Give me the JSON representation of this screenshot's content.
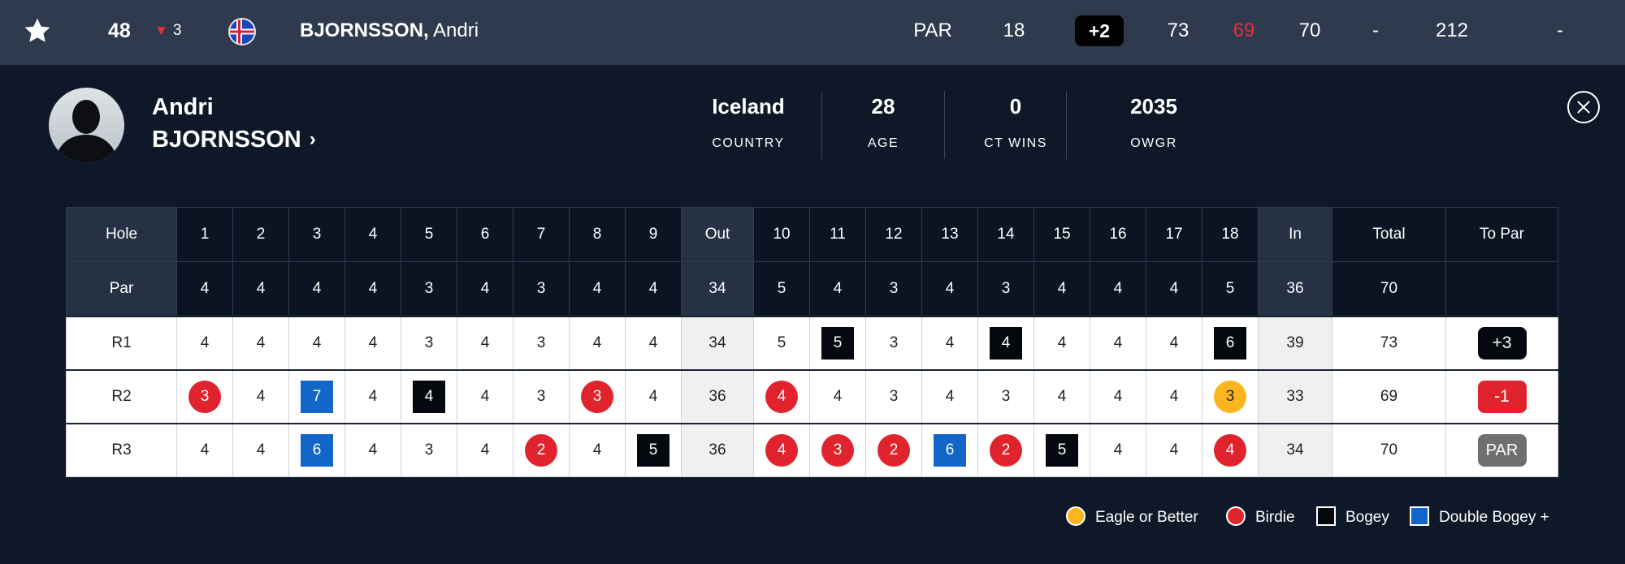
{
  "topbar": {
    "position": "48",
    "movement": "3",
    "player_last": "BJORNSSON,",
    "player_first": "Andri",
    "par_label": "PAR",
    "thru": "18",
    "to_par": "+2",
    "rounds": [
      "73",
      "69",
      "70",
      "-"
    ],
    "total": "212",
    "extra": "-"
  },
  "player": {
    "first_name": "Andri",
    "last_name": "BJORNSSON",
    "stats": [
      {
        "value": "Iceland",
        "label": "COUNTRY"
      },
      {
        "value": "28",
        "label": "AGE"
      },
      {
        "value": "0",
        "label": "CT WINS"
      },
      {
        "value": "2035",
        "label": "OWGR"
      }
    ]
  },
  "scorecard": {
    "header": [
      "Hole",
      "1",
      "2",
      "3",
      "4",
      "5",
      "6",
      "7",
      "8",
      "9",
      "Out",
      "10",
      "11",
      "12",
      "13",
      "14",
      "15",
      "16",
      "17",
      "18",
      "In",
      "Total",
      "To Par"
    ],
    "par": [
      "Par",
      "4",
      "4",
      "4",
      "4",
      "3",
      "4",
      "3",
      "4",
      "4",
      "34",
      "5",
      "4",
      "3",
      "4",
      "3",
      "4",
      "4",
      "4",
      "5",
      "36",
      "70",
      ""
    ],
    "rounds": [
      {
        "label": "R1",
        "holes_out": [
          "4",
          "4",
          "4",
          "4",
          "3",
          "4",
          "3",
          "4",
          "4"
        ],
        "out": "34",
        "holes_in": [
          "5",
          "5",
          "3",
          "4",
          "4",
          "4",
          "4",
          "4",
          "6"
        ],
        "in": "39",
        "total": "73",
        "to_par": "+3"
      },
      {
        "label": "R2",
        "holes_out": [
          "3",
          "4",
          "7",
          "4",
          "4",
          "4",
          "3",
          "3",
          "4"
        ],
        "out": "36",
        "holes_in": [
          "4",
          "4",
          "3",
          "4",
          "3",
          "4",
          "4",
          "4",
          "3"
        ],
        "in": "33",
        "total": "69",
        "to_par": "-1"
      },
      {
        "label": "R3",
        "holes_out": [
          "4",
          "4",
          "6",
          "4",
          "3",
          "4",
          "2",
          "4",
          "5"
        ],
        "out": "36",
        "holes_in": [
          "4",
          "3",
          "2",
          "6",
          "2",
          "5",
          "4",
          "4",
          "4"
        ],
        "in": "34",
        "total": "70",
        "to_par": "PAR"
      }
    ]
  },
  "legend": {
    "eagle": "Eagle or Better",
    "birdie": "Birdie",
    "bogey": "Bogey",
    "double_bogey": "Double Bogey +"
  },
  "colors": {
    "birdie": "#e0232d",
    "eagle": "#fbb61f",
    "bogey": "#05080f",
    "double_bogey": "#1266c9",
    "topbar": "#303a4f",
    "background": "#0f1828"
  },
  "icons": [
    "star-icon",
    "flag-iceland-icon",
    "chevron-right-icon",
    "close-icon"
  ]
}
